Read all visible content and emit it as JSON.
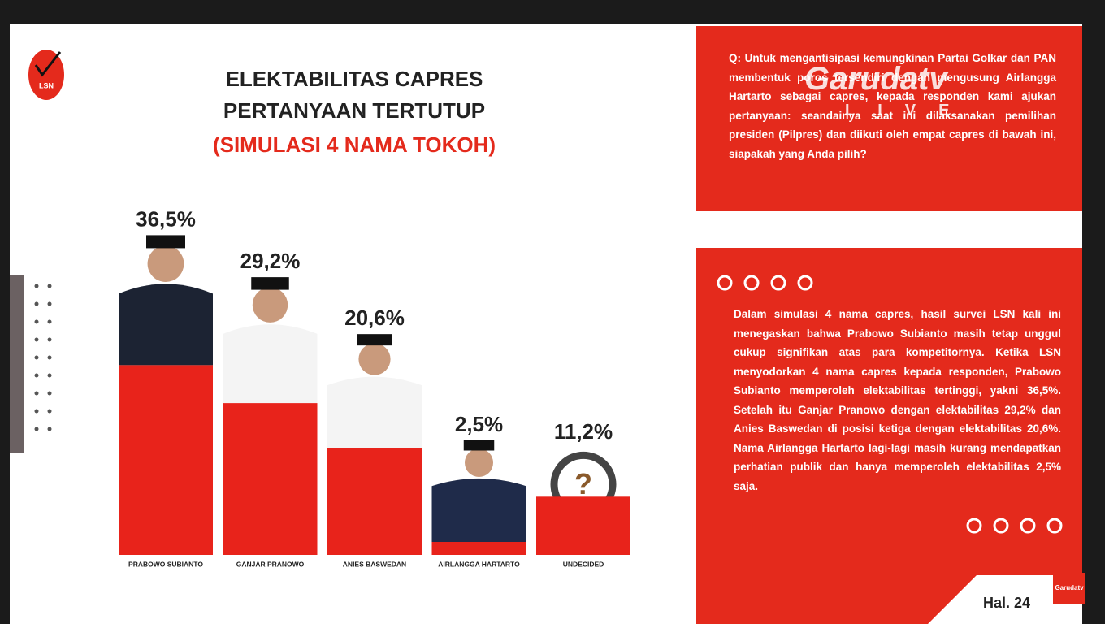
{
  "chart_data": {
    "type": "bar",
    "title": "ELEKTABILITAS CAPRES",
    "title_line2": "PERTANYAAN TERTUTUP",
    "subtitle": "(SIMULASI 4 NAMA TOKOH)",
    "categories": [
      "PRABOWO SUBIANTO",
      "GANJAR PRANOWO",
      "ANIES BASWEDAN",
      "AIRLANGGA HARTARTO",
      "UNDECIDED"
    ],
    "values": [
      36.5,
      29.2,
      20.6,
      2.5,
      11.2
    ],
    "value_labels": [
      "36,5%",
      "29,2%",
      "20,6%",
      "2,5%",
      "11,2%"
    ],
    "color": "#e8231b"
  },
  "logo": "LSN",
  "question": "Q: Untuk mengantisipasi kemungkinan Partai Golkar dan PAN membentuk poros tersendiri dengan mengusung Airlangga Hartarto sebagai capres, kepada responden kami ajukan pertanyaan: seandainya saat ini dilaksanakan pemilihan presiden (Pilpres) dan diikuti oleh empat capres di bawah ini, siapakah yang Anda pilih?",
  "summary": "Dalam simulasi 4 nama capres, hasil survei LSN kali ini menegaskan bahwa Prabowo Subianto masih tetap unggul cukup signifikan atas para kompetitornya. Ketika LSN menyodorkan 4 nama capres kepada responden, Prabowo Subianto memperoleh elektabilitas tertinggi, yakni 36,5%. Setelah itu Ganjar Pranowo dengan elektabilitas 29,2% dan Anies Baswedan di posisi ketiga dengan elektabilitas 20,6%. Nama Airlangga Hartarto lagi-lagi masih kurang mendapatkan perhatian publik dan hanya memperoleh elektabilitas 2,5% saja.",
  "page": "Hal. 24",
  "watermark": "Garudatv",
  "watermark_live": "LIVE",
  "corner_logo": "Garudatv",
  "undecided_icon": "?"
}
